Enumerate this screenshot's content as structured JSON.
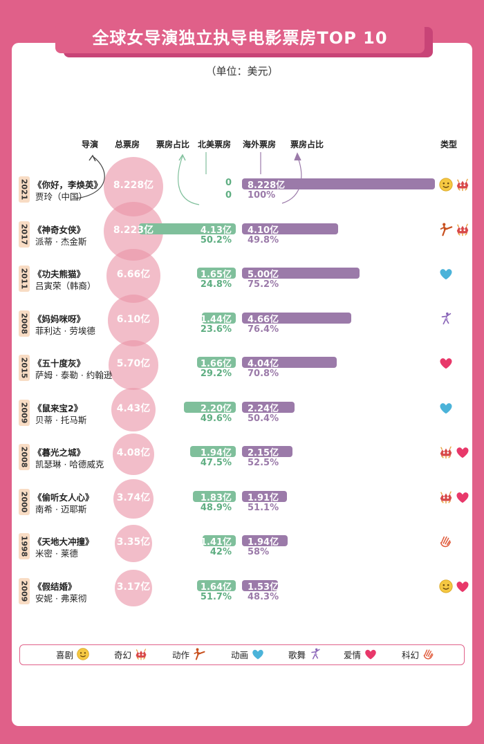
{
  "title": "全球女导演独立执导电影票房TOP 10",
  "unit": "（单位：美元）",
  "headers": {
    "director": "导演",
    "total": "总票房",
    "na_share": "票房占比",
    "na": "北美票房",
    "os": "海外票房",
    "os_share": "票房占比",
    "genre": "类型"
  },
  "colors": {
    "background": "#e06089",
    "bubble": "#ea94a8",
    "north_america": "#7fbf9b",
    "overseas": "#9b7aa9",
    "year_tag": "#f8dcc4"
  },
  "chart_data": {
    "type": "bar",
    "unit": "亿美元",
    "rows": [
      {
        "year": "2021",
        "title": "《你好，李焕英》",
        "director": "贾玲（中国）",
        "total": 8.228,
        "total_label": "8.228亿",
        "na": 0,
        "na_label": "0",
        "na_share": "0",
        "os": 8.228,
        "os_label": "8.228亿",
        "os_share": "100%",
        "genres": [
          "comedy",
          "fantasy"
        ]
      },
      {
        "year": "2017",
        "title": "《神奇女侠》",
        "director": "派蒂 · 杰金斯",
        "total": 8.223,
        "total_label": "8.223亿",
        "na": 4.13,
        "na_label": "4.13亿",
        "na_share": "50.2%",
        "os": 4.1,
        "os_label": "4.10亿",
        "os_share": "49.8%",
        "genres": [
          "action",
          "fantasy"
        ]
      },
      {
        "year": "2011",
        "title": "《功夫熊猫》",
        "director": "吕寅荣（韩裔）",
        "total": 6.66,
        "total_label": "6.66亿",
        "na": 1.65,
        "na_label": "1.65亿",
        "na_share": "24.8%",
        "os": 5.0,
        "os_label": "5.00亿",
        "os_share": "75.2%",
        "genres": [
          "animation"
        ]
      },
      {
        "year": "2008",
        "title": "《妈妈咪呀》",
        "director": "菲利达 · 劳埃德",
        "total": 6.1,
        "total_label": "6.10亿",
        "na": 1.44,
        "na_label": "1.44亿",
        "na_share": "23.6%",
        "os": 4.66,
        "os_label": "4.66亿",
        "os_share": "76.4%",
        "genres": [
          "musical"
        ]
      },
      {
        "year": "2015",
        "title": "《五十度灰》",
        "director": "萨姆 · 泰勒 · 约翰逊",
        "total": 5.7,
        "total_label": "5.70亿",
        "na": 1.66,
        "na_label": "1.66亿",
        "na_share": "29.2%",
        "os": 4.04,
        "os_label": "4.04亿",
        "os_share": "70.8%",
        "genres": [
          "romance"
        ]
      },
      {
        "year": "2009",
        "title": "《鼠来宝2》",
        "director": "贝蒂 · 托马斯",
        "total": 4.43,
        "total_label": "4.43亿",
        "na": 2.2,
        "na_label": "2.20亿",
        "na_share": "49.6%",
        "os": 2.24,
        "os_label": "2.24亿",
        "os_share": "50.4%",
        "genres": [
          "animation"
        ]
      },
      {
        "year": "2008",
        "title": "《暮光之城》",
        "director": "凯瑟琳 · 哈德威克",
        "total": 4.08,
        "total_label": "4.08亿",
        "na": 1.94,
        "na_label": "1.94亿",
        "na_share": "47.5%",
        "os": 2.15,
        "os_label": "2.15亿",
        "os_share": "52.5%",
        "genres": [
          "fantasy",
          "romance"
        ]
      },
      {
        "year": "2000",
        "title": "《偷听女人心》",
        "director": "南希 · 迈耶斯",
        "total": 3.74,
        "total_label": "3.74亿",
        "na": 1.83,
        "na_label": "1.83亿",
        "na_share": "48.9%",
        "os": 1.91,
        "os_label": "1.91亿",
        "os_share": "51.1%",
        "genres": [
          "fantasy",
          "romance"
        ]
      },
      {
        "year": "1998",
        "title": "《天地大冲撞》",
        "director": "米密 · 莱德",
        "total": 3.35,
        "total_label": "3.35亿",
        "na": 1.41,
        "na_label": "1.41亿",
        "na_share": "42%",
        "os": 1.94,
        "os_label": "1.94亿",
        "os_share": "58%",
        "genres": [
          "scifi"
        ]
      },
      {
        "year": "2009",
        "title": "《假结婚》",
        "director": "安妮 · 弗莱彻",
        "total": 3.17,
        "total_label": "3.17亿",
        "na": 1.64,
        "na_label": "1.64亿",
        "na_share": "51.7%",
        "os": 1.53,
        "os_label": "1.53亿",
        "os_share": "48.3%",
        "genres": [
          "comedy",
          "romance"
        ]
      }
    ]
  },
  "legend": [
    {
      "key": "comedy",
      "label": "喜剧",
      "icon": "smiley-icon"
    },
    {
      "key": "fantasy",
      "label": "奇幻",
      "icon": "dragon-icon"
    },
    {
      "key": "action",
      "label": "动作",
      "icon": "kick-icon"
    },
    {
      "key": "animation",
      "label": "动画",
      "icon": "blue-heart-icon"
    },
    {
      "key": "musical",
      "label": "歌舞",
      "icon": "dancer-icon"
    },
    {
      "key": "romance",
      "label": "爱情",
      "icon": "heart-icon"
    },
    {
      "key": "scifi",
      "label": "科幻",
      "icon": "hand-icon"
    }
  ]
}
